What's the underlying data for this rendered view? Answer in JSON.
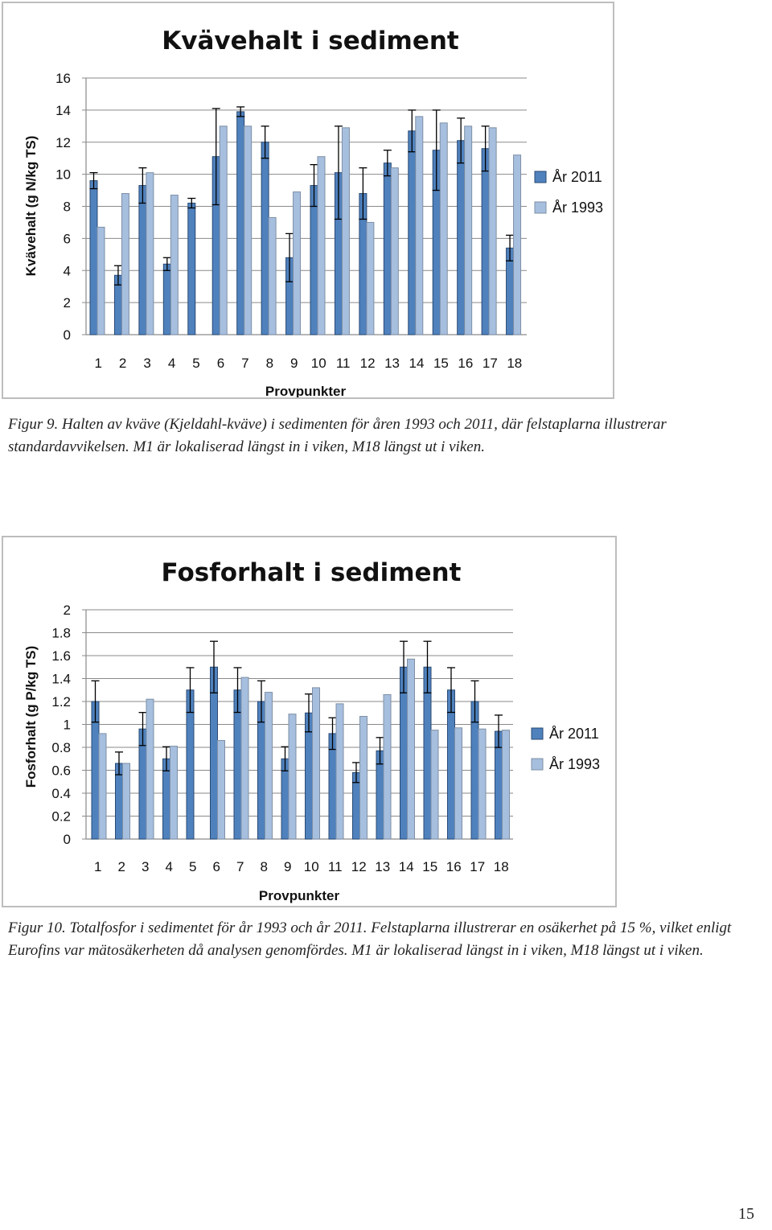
{
  "chart_data": [
    {
      "type": "bar",
      "title": "Kvävehalt i sediment",
      "xlabel": "Provpunkter",
      "ylabel": "Kvävehalt (g N/kg TS)",
      "ylim": [
        0,
        16
      ],
      "yticks": [
        "0",
        "2",
        "4",
        "6",
        "8",
        "10",
        "12",
        "14",
        "16"
      ],
      "grid": true,
      "legend_position": "right",
      "categories": [
        "1",
        "2",
        "3",
        "4",
        "5",
        "6",
        "7",
        "8",
        "9",
        "10",
        "11",
        "12",
        "13",
        "14",
        "15",
        "16",
        "17",
        "18"
      ],
      "series": [
        {
          "name": "År 2011",
          "color": "#4f81bd",
          "values": [
            9.6,
            3.7,
            9.3,
            4.4,
            8.2,
            11.1,
            13.9,
            12,
            4.8,
            9.3,
            10.1,
            8.8,
            10.7,
            12.7,
            11.5,
            12.1,
            11.6,
            5.4
          ],
          "error": [
            0.5,
            0.6,
            1.1,
            0.4,
            0.3,
            3.0,
            0.3,
            1.0,
            1.5,
            1.3,
            2.9,
            1.6,
            0.8,
            1.3,
            2.5,
            1.4,
            1.4,
            0.8
          ]
        },
        {
          "name": "År 1993",
          "color": "#a7bfde",
          "values": [
            6.7,
            8.8,
            10.1,
            8.7,
            null,
            13.0,
            13.0,
            7.3,
            8.9,
            11.1,
            12.9,
            7.0,
            10.4,
            13.6,
            13.2,
            13.0,
            12.9,
            11.2
          ]
        }
      ]
    },
    {
      "type": "bar",
      "title": "Fosforhalt i sediment",
      "xlabel": "Provpunkter",
      "ylabel": "Fosforhalt (g P/kg TS)",
      "ylim": [
        0,
        2
      ],
      "yticks": [
        "0",
        "0.2",
        "0.4",
        "0.6",
        "0.8",
        "1",
        "1.2",
        "1.4",
        "1.6",
        "1.8",
        "2"
      ],
      "grid": true,
      "legend_position": "right",
      "categories": [
        "1",
        "2",
        "3",
        "4",
        "5",
        "6",
        "7",
        "8",
        "9",
        "10",
        "11",
        "12",
        "13",
        "14",
        "15",
        "16",
        "17",
        "18"
      ],
      "series": [
        {
          "name": "År 2011",
          "color": "#4f81bd",
          "values": [
            1.2,
            0.66,
            0.96,
            0.7,
            1.3,
            1.5,
            1.3,
            1.2,
            0.7,
            1.1,
            0.92,
            0.58,
            0.77,
            1.5,
            1.5,
            1.3,
            1.2,
            0.94
          ],
          "error_pct": 15
        },
        {
          "name": "År 1993",
          "color": "#a7bfde",
          "values": [
            0.92,
            0.66,
            1.22,
            0.81,
            null,
            0.86,
            1.41,
            1.28,
            1.09,
            1.32,
            1.18,
            1.07,
            1.26,
            1.57,
            0.95,
            0.97,
            0.96,
            0.95
          ]
        }
      ]
    }
  ],
  "captions": {
    "fig9": "Figur 9. Halten av kväve (Kjeldahl-kväve) i sedimenten för åren 1993 och 2011, där felstaplarna illustrerar standardavvikelsen. M1 är lokaliserad längst in i viken, M18 längst ut i viken.",
    "fig10": "Figur 10. Totalfosfor i sedimentet för år 1993 och år 2011. Felstaplarna illustrerar en osäkerhet på 15 %, vilket enligt Eurofins var mätosäkerheten då analysen genomfördes. M1 är lokaliserad längst in i viken, M18 längst ut i viken."
  },
  "page_number": "15"
}
